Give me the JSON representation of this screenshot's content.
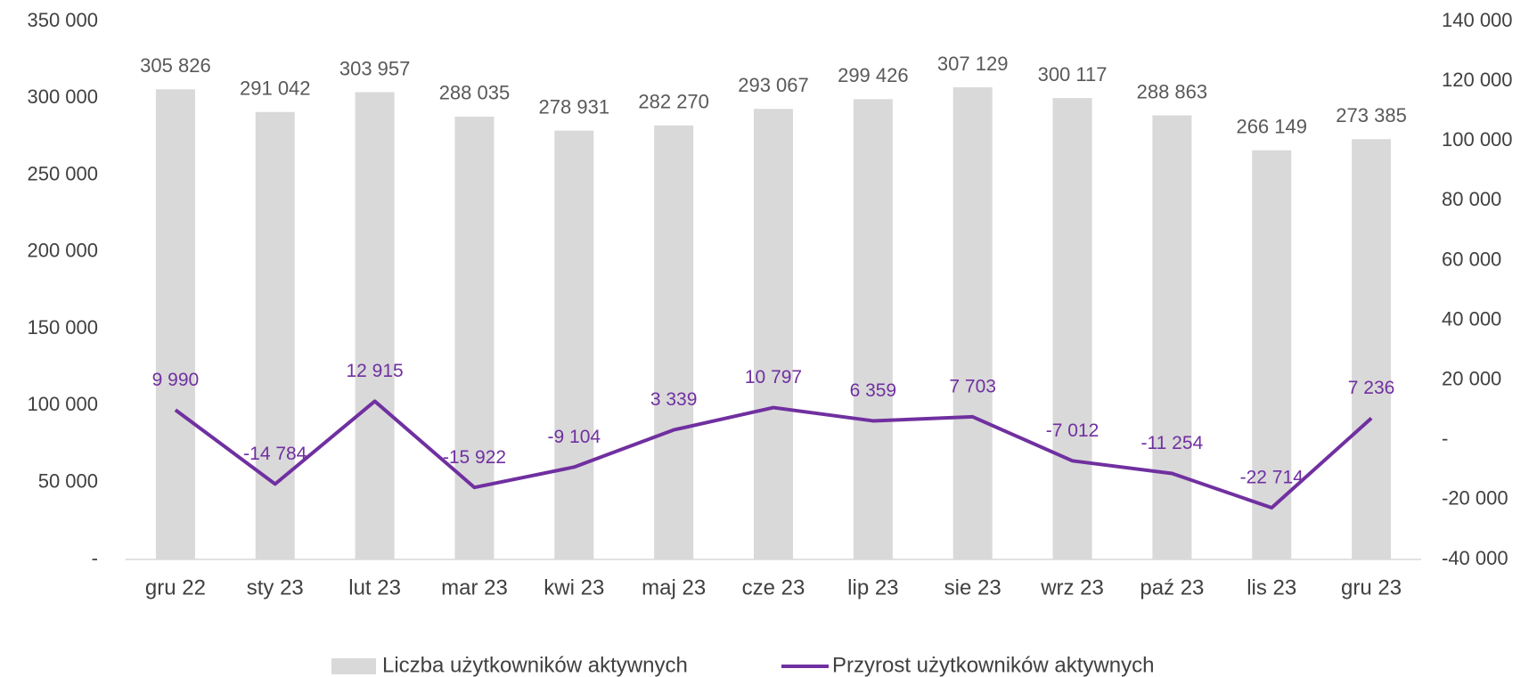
{
  "chart_data": {
    "type": "combo",
    "categories": [
      "gru 22",
      "sty 23",
      "lut 23",
      "mar 23",
      "kwi 23",
      "maj 23",
      "cze 23",
      "lip 23",
      "sie 23",
      "wrz 23",
      "paź 23",
      "lis 23",
      "gru 23"
    ],
    "series": [
      {
        "name": "Liczba użytkowników aktywnych",
        "type": "bar",
        "color": "#d9d9d9",
        "values": [
          305826,
          291042,
          303957,
          288035,
          278931,
          282270,
          293067,
          299426,
          307129,
          300117,
          288863,
          266149,
          273385
        ],
        "value_labels": [
          "305 826",
          "291 042",
          "303 957",
          "288 035",
          "278 931",
          "282 270",
          "293 067",
          "299 426",
          "307 129",
          "300 117",
          "288 863",
          "266 149",
          "273 385"
        ]
      },
      {
        "name": "Przyrost użytkowników aktywnych",
        "type": "line",
        "axis": "y2",
        "color": "#7030a0",
        "values": [
          9990,
          -14784,
          12915,
          -15922,
          -9104,
          3339,
          10797,
          6359,
          7703,
          -7012,
          -11254,
          -22714,
          7236
        ],
        "value_labels": [
          "9 990",
          "-14 784",
          "12 915",
          "-15 922",
          "-9 104",
          "3 339",
          "10 797",
          "6 359",
          "7 703",
          "-7 012",
          "-11 254",
          "-22 714",
          "7 236"
        ]
      }
    ],
    "ylim": [
      0,
      350000
    ],
    "yticks": [
      {
        "value": 0,
        "label": "-"
      },
      {
        "value": 50000,
        "label": "50 000"
      },
      {
        "value": 100000,
        "label": "100 000"
      },
      {
        "value": 150000,
        "label": "150 000"
      },
      {
        "value": 200000,
        "label": "200 000"
      },
      {
        "value": 250000,
        "label": "250 000"
      },
      {
        "value": 300000,
        "label": "300 000"
      },
      {
        "value": 350000,
        "label": "350 000"
      }
    ],
    "y2lim": [
      -40000,
      140000
    ],
    "y2ticks": [
      {
        "value": -40000,
        "label": "-40 000"
      },
      {
        "value": -20000,
        "label": "-20 000"
      },
      {
        "value": 0,
        "label": "-"
      },
      {
        "value": 20000,
        "label": "20 000"
      },
      {
        "value": 40000,
        "label": "40 000"
      },
      {
        "value": 60000,
        "label": "60 000"
      },
      {
        "value": 80000,
        "label": "80 000"
      },
      {
        "value": 100000,
        "label": "100 000"
      },
      {
        "value": 120000,
        "label": "120 000"
      },
      {
        "value": 140000,
        "label": "140 000"
      }
    ],
    "grid": false,
    "legend": "bottom"
  }
}
